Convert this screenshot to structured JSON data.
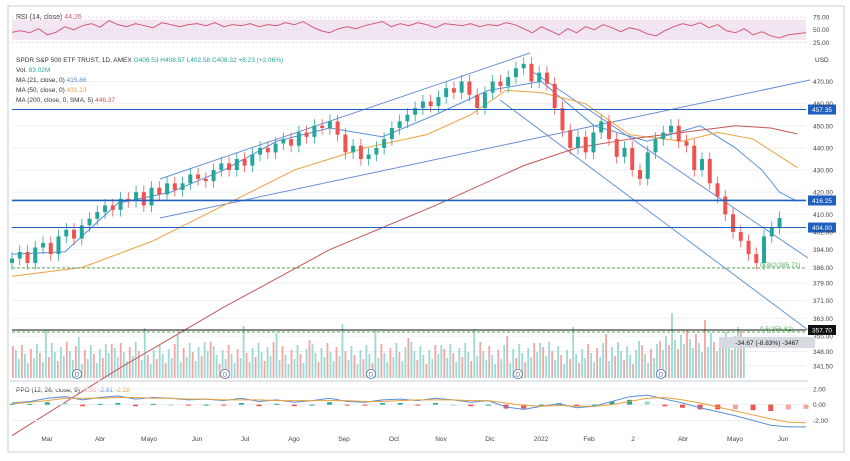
{
  "chart_data": [
    {
      "type": "line",
      "panel": "rsi",
      "label": "RSI (14, close)",
      "value_label": "44.26",
      "yticks": [
        75.0,
        50.0,
        25.0
      ],
      "ytick_labels": [
        "75.00",
        "50.00",
        "25.00"
      ],
      "ylim": [
        10,
        85
      ],
      "band": [
        30,
        70
      ],
      "x": [
        0,
        10,
        20,
        30,
        40,
        50,
        60,
        70,
        80,
        90,
        100,
        110,
        120,
        130,
        140,
        150,
        160,
        170,
        180,
        190,
        200,
        210,
        220,
        230,
        240,
        250,
        260,
        270,
        280,
        290,
        300,
        310,
        320,
        330,
        340,
        350,
        360,
        370,
        380,
        390,
        400,
        410,
        420,
        430,
        440,
        450,
        460,
        470,
        480,
        490,
        500,
        510,
        520,
        530,
        540,
        550,
        560,
        570,
        580,
        590,
        600,
        610,
        620,
        630,
        640,
        650,
        660,
        670,
        680,
        690,
        700,
        710,
        720,
        730,
        740,
        750,
        760,
        770,
        780,
        790,
        800,
        810,
        820,
        830,
        840,
        850,
        860,
        870,
        880,
        890,
        900
      ],
      "values": [
        45,
        48,
        44,
        52,
        40,
        45,
        56,
        50,
        58,
        62,
        55,
        68,
        60,
        56,
        62,
        58,
        54,
        64,
        60,
        56,
        60,
        62,
        58,
        64,
        56,
        60,
        58,
        62,
        56,
        60,
        58,
        64,
        60,
        66,
        56,
        48,
        44,
        52,
        56,
        52,
        58,
        62,
        66,
        56,
        62,
        58,
        64,
        60,
        54,
        62,
        60,
        58,
        62,
        56,
        60,
        58,
        64,
        60,
        52,
        44,
        56,
        48,
        40,
        52,
        44,
        56,
        50,
        60,
        54,
        46,
        54,
        50,
        42,
        38,
        48,
        56,
        62,
        58,
        64,
        54,
        60,
        48,
        44,
        52,
        40,
        46,
        38,
        34,
        40,
        42,
        44.26
      ]
    },
    {
      "type": "line",
      "panel": "price",
      "title": "SPDR S&P 500 ETF TRUST, 1D, AMEX",
      "ohlc_header": {
        "o": "O406.53",
        "h": "H408.57",
        "l": "L402.58",
        "c": "C408.32",
        "chg": "+8.23 (+2.06%)"
      },
      "volume_label": "Vol.",
      "volume_value": "83.02M",
      "currency": "USD",
      "yticks": [
        470.0,
        460.0,
        450.0,
        440.0,
        430.0,
        420.0,
        410.0,
        402.0,
        394.0,
        386.0,
        379.0,
        371.0,
        363.0,
        355.0,
        348.0,
        341.5
      ],
      "ytick_labels": [
        "470.00",
        "460.00",
        "450.00",
        "440.00",
        "430.00",
        "420.00",
        "410.00",
        "402.00",
        "394.00",
        "386.00",
        "379.00",
        "371.00",
        "363.00",
        "355.00",
        "348.00",
        "341.50"
      ],
      "ylim": [
        336,
        482
      ],
      "x_labels": [
        "Mar",
        "Abr",
        "Mayo",
        "Jun",
        "Jul",
        "Ago",
        "Sep",
        "Oct",
        "Nov",
        "Dic",
        "2022",
        "Feb",
        "2",
        "Abr",
        "Mayo",
        "Jun"
      ],
      "series": [
        {
          "name": "MA (21, close, 0)",
          "value": "415.86",
          "color": "#5b8fd8",
          "x": [
            0,
            60,
            120,
            180,
            240,
            300,
            360,
            420,
            480,
            540,
            600,
            660,
            720,
            780,
            820,
            850,
            870,
            890
          ],
          "values": [
            392,
            393,
            415,
            420,
            430,
            443,
            449,
            445,
            455,
            466,
            470,
            450,
            443,
            450,
            440,
            430,
            420,
            415.86
          ]
        },
        {
          "name": "MA (50, close, 0)",
          "value": "431.13",
          "color": "#e8a23c",
          "x": [
            0,
            80,
            160,
            240,
            320,
            400,
            470,
            520,
            560,
            600,
            650,
            700,
            760,
            800,
            840,
            890
          ],
          "values": [
            382,
            386,
            398,
            414,
            430,
            440,
            446,
            455,
            466,
            465,
            460,
            446,
            443,
            447,
            444,
            431.13
          ]
        },
        {
          "name": "MA (200, close, 0, SMA, 5)",
          "value": "446.37",
          "color": "#c25757",
          "x": [
            0,
            120,
            240,
            360,
            480,
            580,
            640,
            700,
            760,
            820,
            860,
            890
          ],
          "values": [
            310,
            340,
            368,
            394,
            414,
            432,
            440,
            444,
            447,
            450,
            449,
            446.37
          ]
        }
      ],
      "candles": [
        390,
        393,
        388,
        395,
        397,
        392,
        400,
        403,
        399,
        405,
        408,
        411,
        414,
        412,
        417,
        416,
        420,
        414,
        422,
        419,
        424,
        421,
        424,
        428,
        426,
        425,
        430,
        433,
        430,
        435,
        432,
        437,
        440,
        438,
        442,
        444,
        441,
        447,
        445,
        450,
        449,
        452,
        446,
        438,
        441,
        435,
        437,
        440,
        444,
        449,
        452,
        455,
        458,
        461,
        459,
        463,
        467,
        465,
        470,
        464,
        458,
        465,
        470,
        468,
        472,
        476,
        478,
        470,
        474,
        469,
        458,
        448,
        440,
        445,
        438,
        447,
        452,
        444,
        436,
        440,
        430,
        426,
        438,
        444,
        447,
        450,
        443,
        441,
        430,
        435,
        424,
        418,
        410,
        402,
        398,
        392,
        388,
        400,
        404,
        408.32
      ],
      "horizontal_levels": [
        {
          "label": "457.35",
          "value": 457.35,
          "color": "#1f5fbf",
          "boxed": true
        },
        {
          "label": "416.25",
          "value": 416.25,
          "color": "#1f5fbf",
          "boxed": true,
          "thick": true
        },
        {
          "label": "404.00",
          "value": 404.0,
          "color": "#1f5fbf",
          "boxed": true
        },
        {
          "label": "357.70",
          "value": 357.7,
          "color": "#111111",
          "boxed": true
        },
        {
          "label": "0.382(385.71)",
          "value": 385.71,
          "color": "#5cae5c",
          "boxed": false
        },
        {
          "label": "0.5(356.82)",
          "value": 356.82,
          "color": "#5cae5c",
          "boxed": false
        }
      ],
      "measure_label": "-34.67 (-8.83%) -3467",
      "dividend_markers": [
        "D",
        "D",
        "D",
        "D",
        "D"
      ]
    },
    {
      "type": "bar",
      "panel": "ppo",
      "label": "PPO (12, 26, close, 9)",
      "legend_values": [
        "-0.51",
        "-2.81",
        "-2.28"
      ],
      "yticks": [
        2.0,
        0.0,
        -2.0
      ],
      "ytick_labels": [
        "2.00",
        "0.00",
        "-2.00"
      ],
      "ylim": [
        -3.2,
        2.6
      ],
      "x": [
        0,
        20,
        40,
        60,
        80,
        100,
        120,
        140,
        160,
        180,
        200,
        220,
        240,
        260,
        280,
        300,
        320,
        340,
        360,
        380,
        400,
        420,
        440,
        460,
        480,
        500,
        520,
        540,
        560,
        580,
        600,
        620,
        640,
        660,
        680,
        700,
        720,
        740,
        760,
        780,
        800,
        820,
        840,
        860,
        880,
        900
      ],
      "ppo": [
        0.2,
        0.4,
        0.8,
        1.0,
        0.6,
        0.9,
        1.1,
        0.7,
        0.9,
        0.8,
        0.6,
        0.7,
        0.5,
        0.8,
        0.4,
        0.6,
        0.3,
        0.5,
        0.8,
        0.4,
        0.3,
        0.6,
        0.7,
        0.5,
        0.8,
        0.6,
        0.3,
        0.5,
        -0.3,
        -0.6,
        -0.2,
        0.1,
        -0.4,
        -0.2,
        0.4,
        1.0,
        1.2,
        0.7,
        0.2,
        -0.4,
        -0.9,
        -1.4,
        -2.0,
        -2.6,
        -2.8,
        -2.81
      ],
      "signal": [
        0.1,
        0.3,
        0.5,
        0.8,
        0.8,
        0.8,
        0.9,
        0.9,
        0.8,
        0.8,
        0.7,
        0.7,
        0.6,
        0.6,
        0.6,
        0.5,
        0.5,
        0.5,
        0.5,
        0.5,
        0.4,
        0.4,
        0.5,
        0.6,
        0.6,
        0.6,
        0.5,
        0.5,
        0.2,
        -0.1,
        -0.2,
        -0.1,
        -0.2,
        -0.2,
        0.0,
        0.4,
        0.8,
        0.9,
        0.6,
        0.2,
        -0.3,
        -0.8,
        -1.3,
        -1.8,
        -2.2,
        -2.28
      ],
      "hist_colors": {
        "pos_up": "#26a69a",
        "pos_down": "#9fd8d3",
        "neg_down": "#ef5350",
        "neg_up": "#f5a3a1"
      }
    }
  ]
}
